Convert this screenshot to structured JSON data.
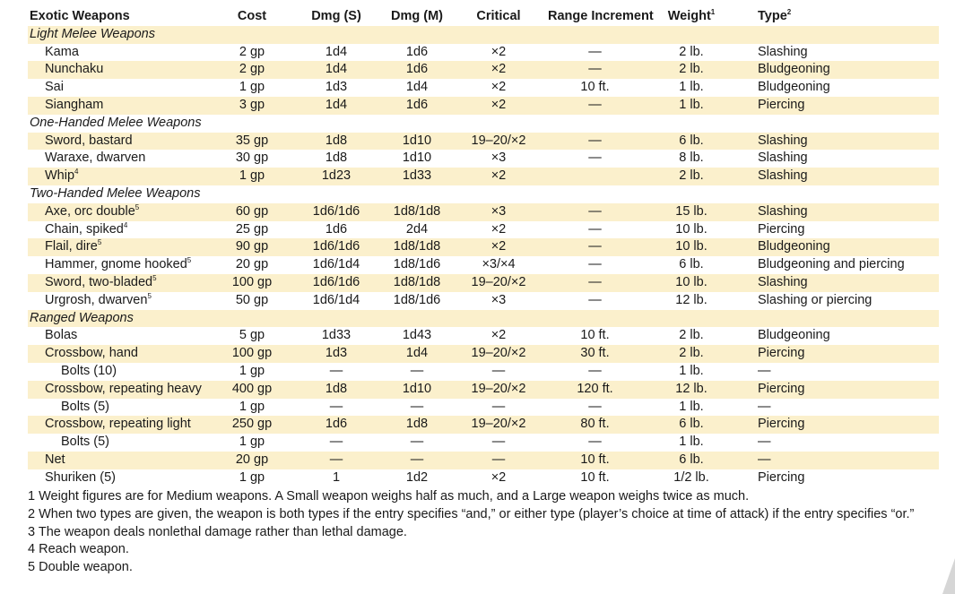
{
  "headers": {
    "name": "Exotic Weapons",
    "cost": "Cost",
    "dmg_s": "Dmg (S)",
    "dmg_m": "Dmg (M)",
    "critical": "Critical",
    "range": "Range Increment",
    "weight": "Weight",
    "weight_sup": "1",
    "type": "Type",
    "type_sup": "2"
  },
  "rows": [
    {
      "kind": "cat",
      "label": "Light Melee Weapons"
    },
    {
      "kind": "item",
      "name": "Kama",
      "cost": "2 gp",
      "dmg_s": "1d4",
      "dmg_m": "1d6",
      "critical": "×2",
      "range": "—",
      "weight": "2 lb.",
      "type": "Slashing"
    },
    {
      "kind": "item",
      "name": "Nunchaku",
      "cost": "2 gp",
      "dmg_s": "1d4",
      "dmg_m": "1d6",
      "critical": "×2",
      "range": "—",
      "weight": "2 lb.",
      "type": "Bludgeoning"
    },
    {
      "kind": "item",
      "name": "Sai",
      "cost": "1 gp",
      "dmg_s": "1d3",
      "dmg_m": "1d4",
      "critical": "×2",
      "range": "10 ft.",
      "weight": "1 lb.",
      "type": "Bludgeoning"
    },
    {
      "kind": "item",
      "name": "Siangham",
      "cost": "3 gp",
      "dmg_s": "1d4",
      "dmg_m": "1d6",
      "critical": "×2",
      "range": "—",
      "weight": "1 lb.",
      "type": "Piercing"
    },
    {
      "kind": "cat",
      "label": "One-Handed Melee Weapons"
    },
    {
      "kind": "item",
      "name": "Sword, bastard",
      "cost": "35 gp",
      "dmg_s": "1d8",
      "dmg_m": "1d10",
      "critical": "19–20/×2",
      "range": "—",
      "weight": "6 lb.",
      "type": "Slashing"
    },
    {
      "kind": "item",
      "name": "Waraxe, dwarven",
      "cost": "30 gp",
      "dmg_s": "1d8",
      "dmg_m": "1d10",
      "critical": "×3",
      "range": "—",
      "weight": "8 lb.",
      "type": "Slashing"
    },
    {
      "kind": "item",
      "name": "Whip",
      "sup": "4",
      "cost": "1 gp",
      "dmg_s": "1d23",
      "dmg_m": "1d33",
      "critical": "×2",
      "range": "",
      "weight": "2 lb.",
      "type": "Slashing"
    },
    {
      "kind": "cat",
      "label": "Two-Handed Melee Weapons"
    },
    {
      "kind": "item",
      "name": "Axe, orc double",
      "sup": "5",
      "cost": "60 gp",
      "dmg_s": "1d6/1d6",
      "dmg_m": "1d8/1d8",
      "critical": "×3",
      "range": "—",
      "weight": "15 lb.",
      "type": "Slashing"
    },
    {
      "kind": "item",
      "name": "Chain, spiked",
      "sup": "4",
      "cost": "25 gp",
      "dmg_s": "1d6",
      "dmg_m": "2d4",
      "critical": "×2",
      "range": "—",
      "weight": "10 lb.",
      "type": "Piercing"
    },
    {
      "kind": "item",
      "name": "Flail, dire",
      "sup": "5",
      "cost": "90 gp",
      "dmg_s": "1d6/1d6",
      "dmg_m": "1d8/1d8",
      "critical": "×2",
      "range": "—",
      "weight": "10 lb.",
      "type": "Bludgeoning"
    },
    {
      "kind": "item",
      "name": "Hammer, gnome hooked",
      "sup": "5",
      "cost": "20 gp",
      "dmg_s": "1d6/1d4",
      "dmg_m": "1d8/1d6",
      "critical": "×3/×4",
      "range": "—",
      "weight": "6 lb.",
      "type": "Bludgeoning and piercing"
    },
    {
      "kind": "item",
      "name": "Sword, two-bladed",
      "sup": "5",
      "cost": "100 gp",
      "dmg_s": "1d6/1d6",
      "dmg_m": "1d8/1d8",
      "critical": "19–20/×2",
      "range": "—",
      "weight": "10 lb.",
      "type": "Slashing"
    },
    {
      "kind": "item",
      "name": "Urgrosh, dwarven",
      "sup": "5",
      "cost": "50 gp",
      "dmg_s": "1d6/1d4",
      "dmg_m": "1d8/1d6",
      "critical": "×3",
      "range": "—",
      "weight": "12 lb.",
      "type": "Slashing or piercing"
    },
    {
      "kind": "cat",
      "label": "Ranged Weapons"
    },
    {
      "kind": "item",
      "name": "Bolas",
      "cost": "5 gp",
      "dmg_s": "1d33",
      "dmg_m": "1d43",
      "critical": "×2",
      "range": "10 ft.",
      "weight": "2 lb.",
      "type": "Bludgeoning"
    },
    {
      "kind": "item",
      "name": "Crossbow, hand",
      "cost": "100 gp",
      "dmg_s": "1d3",
      "dmg_m": "1d4",
      "critical": "19–20/×2",
      "range": "30 ft.",
      "weight": "2 lb.",
      "type": "Piercing"
    },
    {
      "kind": "item",
      "sub": true,
      "name": "Bolts (10)",
      "cost": "1 gp",
      "dmg_s": "—",
      "dmg_m": "—",
      "critical": "—",
      "range": "—",
      "weight": "1 lb.",
      "type": "—"
    },
    {
      "kind": "item",
      "name": "Crossbow, repeating heavy",
      "cost": "400 gp",
      "dmg_s": "1d8",
      "dmg_m": "1d10",
      "critical": "19–20/×2",
      "range": "120 ft.",
      "weight": "12 lb.",
      "type": "Piercing"
    },
    {
      "kind": "item",
      "sub": true,
      "name": "Bolts (5)",
      "cost": "1 gp",
      "dmg_s": "—",
      "dmg_m": "—",
      "critical": "—",
      "range": "—",
      "weight": "1 lb.",
      "type": "—"
    },
    {
      "kind": "item",
      "name": "Crossbow, repeating light",
      "cost": "250 gp",
      "dmg_s": "1d6",
      "dmg_m": "1d8",
      "critical": "19–20/×2",
      "range": "80 ft.",
      "weight": "6 lb.",
      "type": "Piercing"
    },
    {
      "kind": "item",
      "sub": true,
      "name": "Bolts (5)",
      "cost": "1 gp",
      "dmg_s": "—",
      "dmg_m": "—",
      "critical": "—",
      "range": "—",
      "weight": "1 lb.",
      "type": "—"
    },
    {
      "kind": "item",
      "name": "Net",
      "cost": "20 gp",
      "dmg_s": "—",
      "dmg_m": "—",
      "critical": "—",
      "range": "10 ft.",
      "weight": "6 lb.",
      "type": "—"
    },
    {
      "kind": "item",
      "name": "Shuriken (5)",
      "cost": "1 gp",
      "dmg_s": "1",
      "dmg_m": "1d2",
      "critical": "×2",
      "range": "10 ft.",
      "weight": "1/2 lb.",
      "type": "Piercing"
    }
  ],
  "notes": [
    "1 Weight figures are for Medium weapons. A Small weapon weighs half as much, and a Large weapon weighs twice as much.",
    "2 When two types are given, the weapon is both types if the entry specifies “and,” or either type (player’s choice at time of attack) if the entry specifies “or.”",
    "3 The weapon deals nonlethal damage rather than lethal damage.",
    "4 Reach weapon.",
    "5 Double weapon."
  ]
}
